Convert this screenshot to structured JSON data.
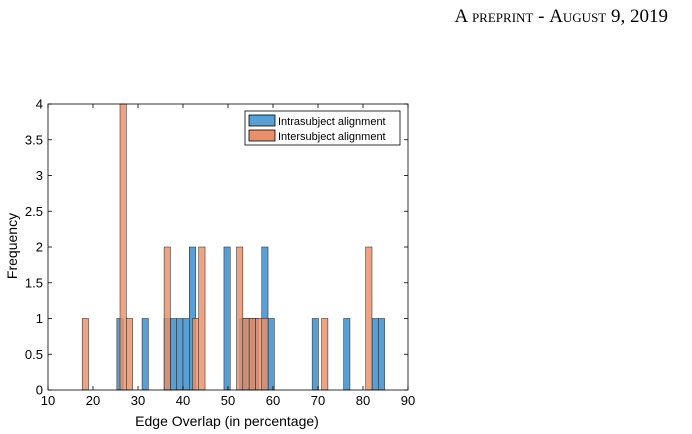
{
  "header": {
    "left_text": "A preprint",
    "separator": " - ",
    "date_text": "August 9, 2019"
  },
  "chart_data": {
    "type": "bar",
    "subtype": "overlapping-histogram",
    "title": "",
    "xlabel": "Edge Overlap (in percentage)",
    "ylabel": "Frequency",
    "xlim": [
      10,
      90
    ],
    "ylim": [
      0,
      4
    ],
    "x_ticks": [
      "10",
      "20",
      "30",
      "40",
      "50",
      "60",
      "70",
      "80",
      "90"
    ],
    "y_ticks": [
      "0",
      "0.5",
      "1",
      "1.5",
      "2",
      "2.5",
      "3",
      "3.5",
      "4"
    ],
    "bin_width": 1.4,
    "legend_position": "top-right",
    "series": [
      {
        "name": "Intrasubject alignment",
        "color": "#5a9fd4",
        "bins": [
          {
            "x": 26.0,
            "count": 1
          },
          {
            "x": 31.6,
            "count": 1
          },
          {
            "x": 36.5,
            "count": 1
          },
          {
            "x": 37.9,
            "count": 1
          },
          {
            "x": 39.3,
            "count": 1
          },
          {
            "x": 40.7,
            "count": 1
          },
          {
            "x": 42.1,
            "count": 2
          },
          {
            "x": 49.8,
            "count": 2
          },
          {
            "x": 53.3,
            "count": 1
          },
          {
            "x": 54.7,
            "count": 1
          },
          {
            "x": 56.1,
            "count": 1
          },
          {
            "x": 58.2,
            "count": 2
          },
          {
            "x": 59.6,
            "count": 1
          },
          {
            "x": 69.4,
            "count": 1
          },
          {
            "x": 76.4,
            "count": 1
          },
          {
            "x": 82.7,
            "count": 1
          },
          {
            "x": 84.1,
            "count": 1
          }
        ]
      },
      {
        "name": "Intersubject alignment",
        "color": "#e8906a",
        "bins": [
          {
            "x": 18.3,
            "count": 1
          },
          {
            "x": 26.7,
            "count": 4
          },
          {
            "x": 28.1,
            "count": 1
          },
          {
            "x": 36.5,
            "count": 2
          },
          {
            "x": 42.8,
            "count": 1
          },
          {
            "x": 44.2,
            "count": 2
          },
          {
            "x": 52.6,
            "count": 2
          },
          {
            "x": 54.0,
            "count": 1
          },
          {
            "x": 55.4,
            "count": 1
          },
          {
            "x": 56.8,
            "count": 1
          },
          {
            "x": 58.2,
            "count": 1
          },
          {
            "x": 71.5,
            "count": 1
          },
          {
            "x": 81.3,
            "count": 2
          }
        ]
      }
    ]
  }
}
